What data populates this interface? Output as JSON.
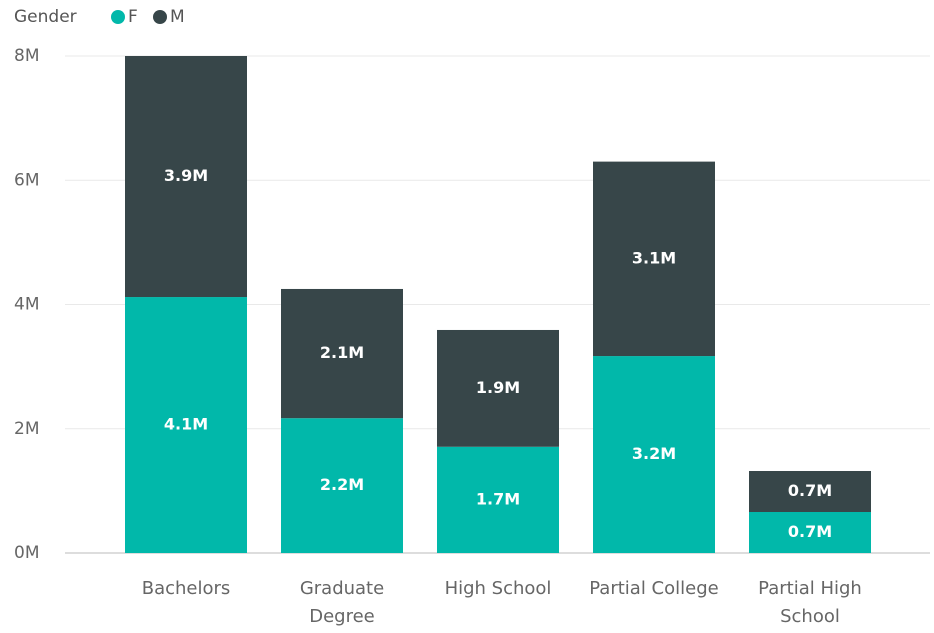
{
  "chart_data": {
    "type": "stacked_bar",
    "legend_title": "Gender",
    "legend_position": "top-left",
    "categories": [
      "Bachelors",
      "Graduate Degree",
      "High School",
      "Partial College",
      "Partial High School"
    ],
    "series": [
      {
        "name": "F",
        "color": "#01b8aa",
        "values": [
          4120000,
          2170000,
          1710000,
          3170000,
          660000
        ],
        "value_labels": [
          "4.1M",
          "2.2M",
          "1.7M",
          "3.2M",
          "0.7M"
        ]
      },
      {
        "name": "M",
        "color": "#374649",
        "values": [
          3880000,
          2080000,
          1880000,
          3130000,
          660000
        ],
        "value_labels": [
          "3.9M",
          "2.1M",
          "1.9M",
          "3.1M",
          "0.7M"
        ]
      }
    ],
    "ylim": [
      0,
      8000000
    ],
    "yticks": [
      {
        "value": 0,
        "label": "0M"
      },
      {
        "value": 2000000,
        "label": "2M"
      },
      {
        "value": 4000000,
        "label": "4M"
      },
      {
        "value": 6000000,
        "label": "6M"
      },
      {
        "value": 8000000,
        "label": "8M"
      }
    ],
    "grid": true
  }
}
